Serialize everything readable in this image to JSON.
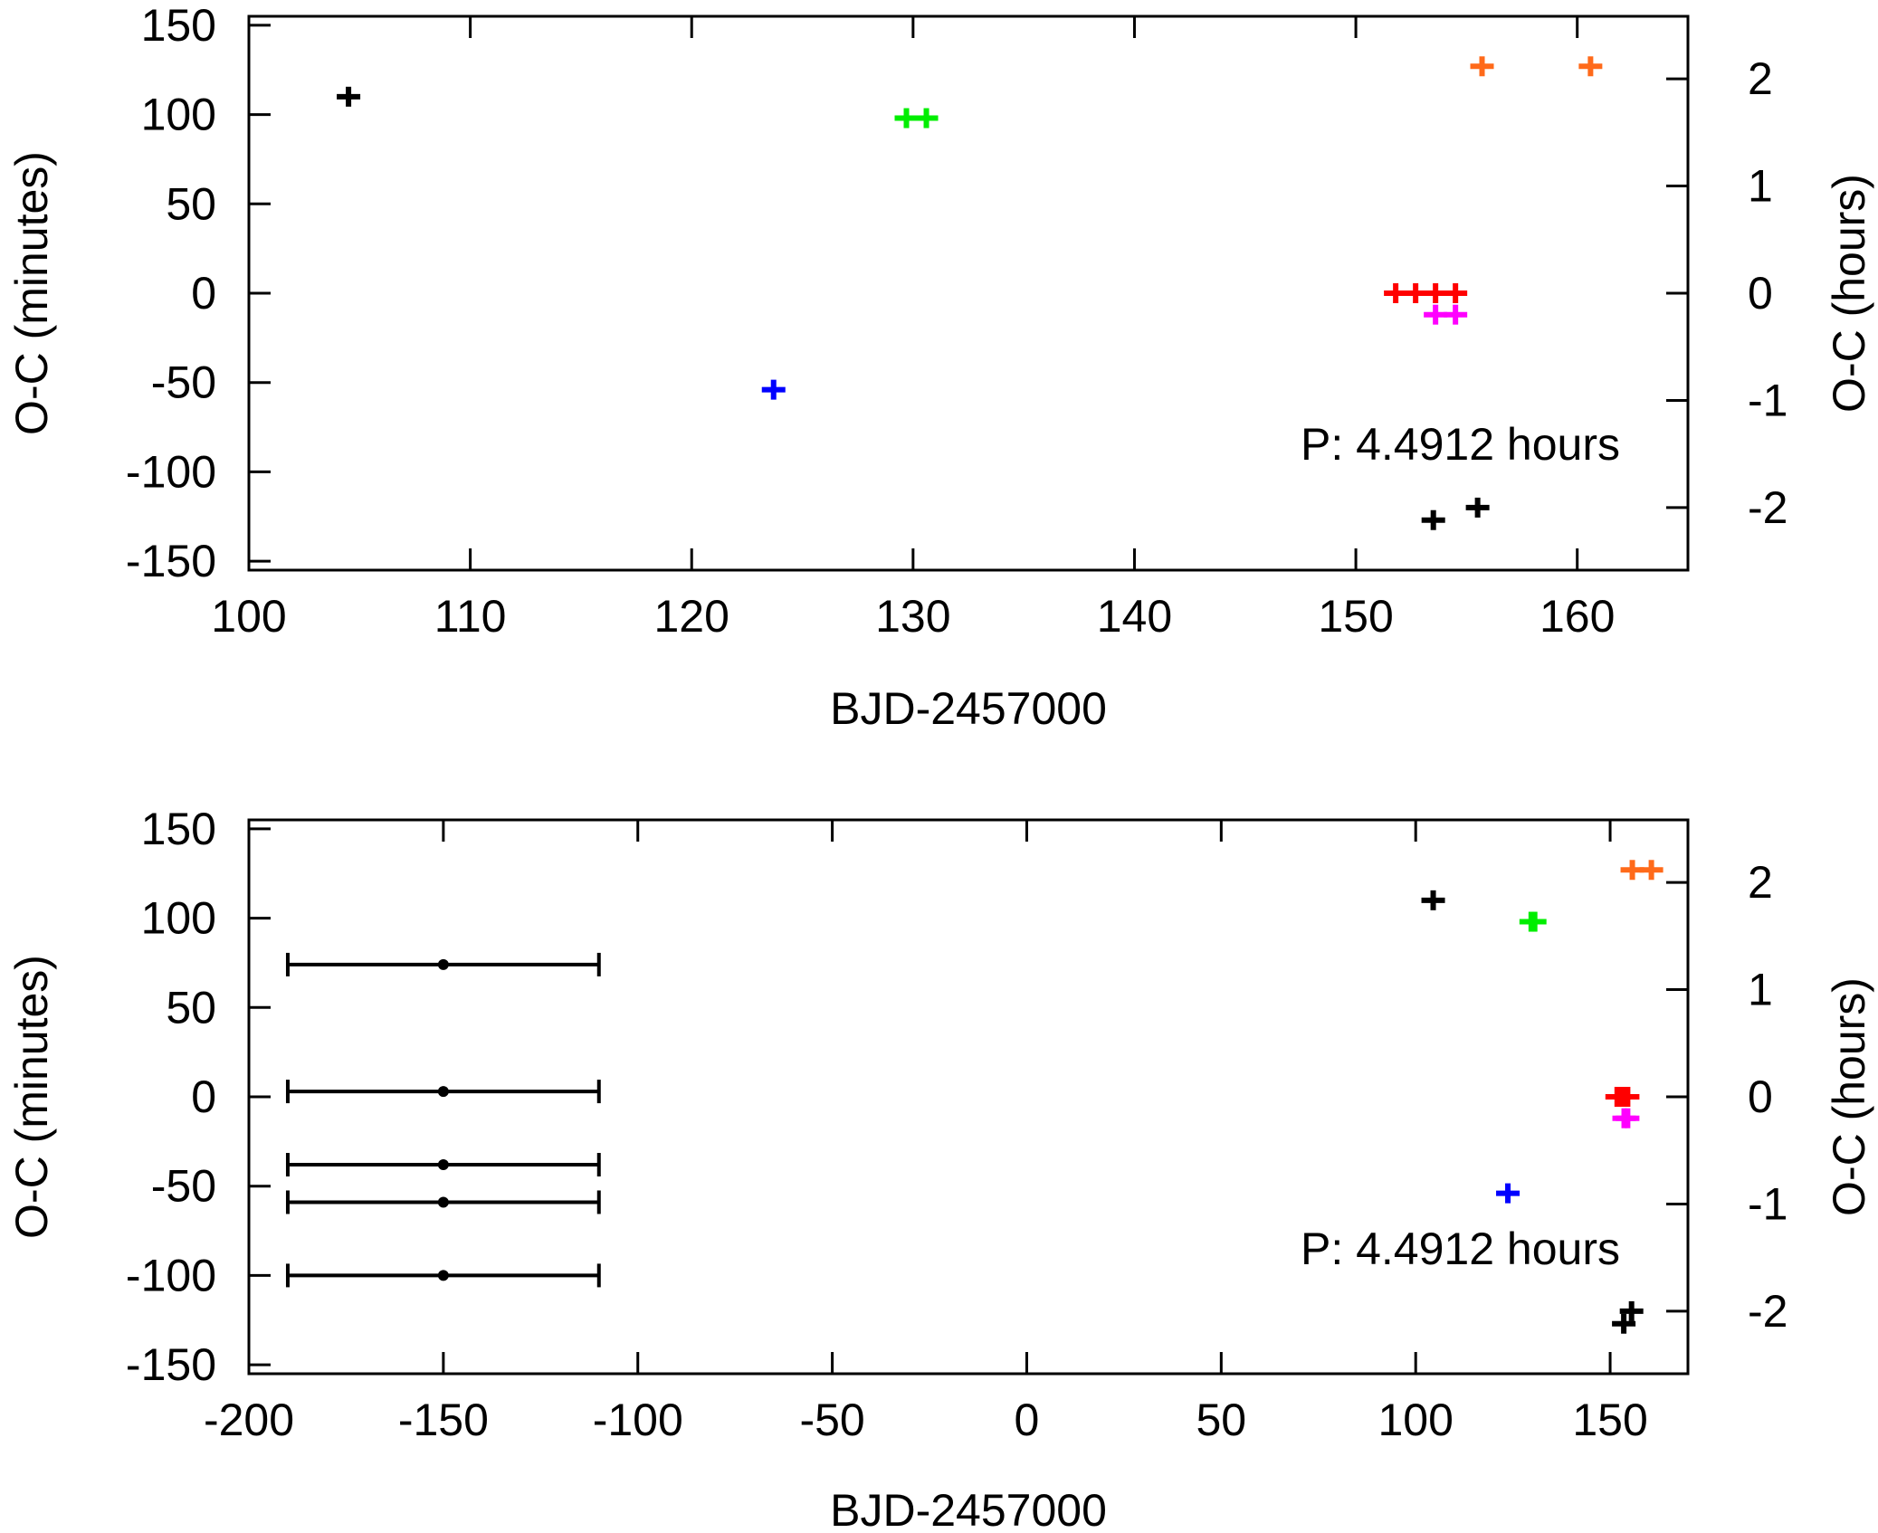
{
  "chart_data": [
    {
      "type": "scatter",
      "xlabel": "BJD-2457000",
      "ylabel": "O-C (minutes)",
      "y2label": "O-C (hours)",
      "annotation": "P: 4.4912 hours",
      "xlim": [
        100,
        165
      ],
      "ylim": [
        -155,
        155
      ],
      "y2lim": [
        -2.5833,
        2.5833
      ],
      "xticks": [
        100,
        110,
        120,
        130,
        140,
        150,
        160
      ],
      "yticks": [
        -150,
        -100,
        -50,
        0,
        50,
        100,
        150
      ],
      "y2ticks": [
        -2,
        -1,
        0,
        1,
        2
      ],
      "grid": false,
      "series": [
        {
          "color": "#000000",
          "points": [
            {
              "x": 104.5,
              "y": 110
            },
            {
              "x": 153.5,
              "y": -127
            },
            {
              "x": 155.5,
              "y": -120
            }
          ]
        },
        {
          "color": "#0000ff",
          "points": [
            {
              "x": 123.7,
              "y": -54
            }
          ]
        },
        {
          "color": "#00ee00",
          "points": [
            {
              "x": 129.7,
              "y": 98
            },
            {
              "x": 130.6,
              "y": 98
            }
          ]
        },
        {
          "color": "#ff0000",
          "points": [
            {
              "x": 151.8,
              "y": 0
            },
            {
              "x": 152.7,
              "y": 0
            },
            {
              "x": 153.6,
              "y": 0
            },
            {
              "x": 154.5,
              "y": 0
            }
          ]
        },
        {
          "color": "#ff00ff",
          "points": [
            {
              "x": 153.6,
              "y": -12
            },
            {
              "x": 154.5,
              "y": -12
            }
          ]
        },
        {
          "color": "#ff6a1a",
          "points": [
            {
              "x": 155.7,
              "y": 127
            },
            {
              "x": 160.6,
              "y": 127
            }
          ]
        }
      ]
    },
    {
      "type": "scatter",
      "xlabel": "BJD-2457000",
      "ylabel": "O-C (minutes)",
      "y2label": "O-C (hours)",
      "annotation": "P: 4.4912 hours",
      "xlim": [
        -200,
        170
      ],
      "ylim": [
        -155,
        155
      ],
      "y2lim": [
        -2.5833,
        2.5833
      ],
      "xticks": [
        -200,
        -150,
        -100,
        -50,
        0,
        50,
        100,
        150
      ],
      "yticks": [
        -150,
        -100,
        -50,
        0,
        50,
        100,
        150
      ],
      "y2ticks": [
        -2,
        -1,
        0,
        1,
        2
      ],
      "grid": false,
      "series": [
        {
          "color": "#000000",
          "points": [
            {
              "x": 104.5,
              "y": 110
            },
            {
              "x": 153.5,
              "y": -127
            },
            {
              "x": 155.5,
              "y": -120
            }
          ]
        },
        {
          "color": "#0000ff",
          "points": [
            {
              "x": 123.7,
              "y": -54
            }
          ]
        },
        {
          "color": "#00ee00",
          "points": [
            {
              "x": 129.7,
              "y": 98
            },
            {
              "x": 130.6,
              "y": 98
            }
          ]
        },
        {
          "color": "#ff0000",
          "points": [
            {
              "x": 151.8,
              "y": 0
            },
            {
              "x": 152.7,
              "y": 0
            },
            {
              "x": 153.6,
              "y": 0
            },
            {
              "x": 154.5,
              "y": 0
            }
          ]
        },
        {
          "color": "#ff00ff",
          "points": [
            {
              "x": 153.6,
              "y": -12
            },
            {
              "x": 154.5,
              "y": -12
            }
          ]
        },
        {
          "color": "#ff6a1a",
          "points": [
            {
              "x": 155.7,
              "y": 127
            },
            {
              "x": 160.6,
              "y": 127
            }
          ]
        }
      ],
      "error_bars": [
        {
          "x": -150,
          "y": 74,
          "xmin": -190,
          "xmax": -110
        },
        {
          "x": -150,
          "y": 3,
          "xmin": -190,
          "xmax": -110
        },
        {
          "x": -150,
          "y": -38,
          "xmin": -190,
          "xmax": -110
        },
        {
          "x": -150,
          "y": -59,
          "xmin": -190,
          "xmax": -110
        },
        {
          "x": -150,
          "y": -100,
          "xmin": -190,
          "xmax": -110
        }
      ]
    }
  ]
}
